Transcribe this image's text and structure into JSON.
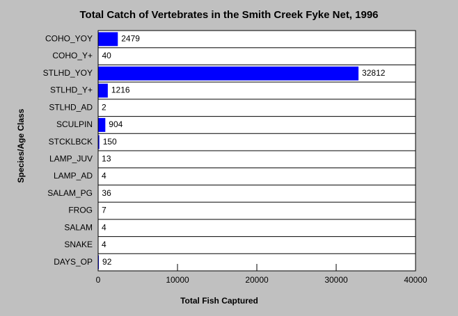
{
  "chart_data": {
    "type": "bar",
    "orientation": "horizontal",
    "title": "Total Catch of Vertebrates in the Smith Creek Fyke Net, 1996",
    "x_label": "Total Fish Captured",
    "y_label": "Species/Age Class",
    "categories": [
      "COHO_YOY",
      "COHO_Y+",
      "STLHD_YOY",
      "STLHD_Y+",
      "STLHD_AD",
      "SCULPIN",
      "STCKLBCK",
      "LAMP_JUV",
      "LAMP_AD",
      "SALAM_PG",
      "FROG",
      "SALAM",
      "SNAKE",
      "DAYS_OP"
    ],
    "values": [
      2479,
      40,
      32812,
      1216,
      2,
      904,
      150,
      13,
      4,
      36,
      7,
      4,
      4,
      92
    ],
    "color": "#0000ff",
    "xlim": [
      0,
      40000
    ],
    "xticks": [
      0,
      10000,
      20000,
      30000,
      40000
    ]
  }
}
